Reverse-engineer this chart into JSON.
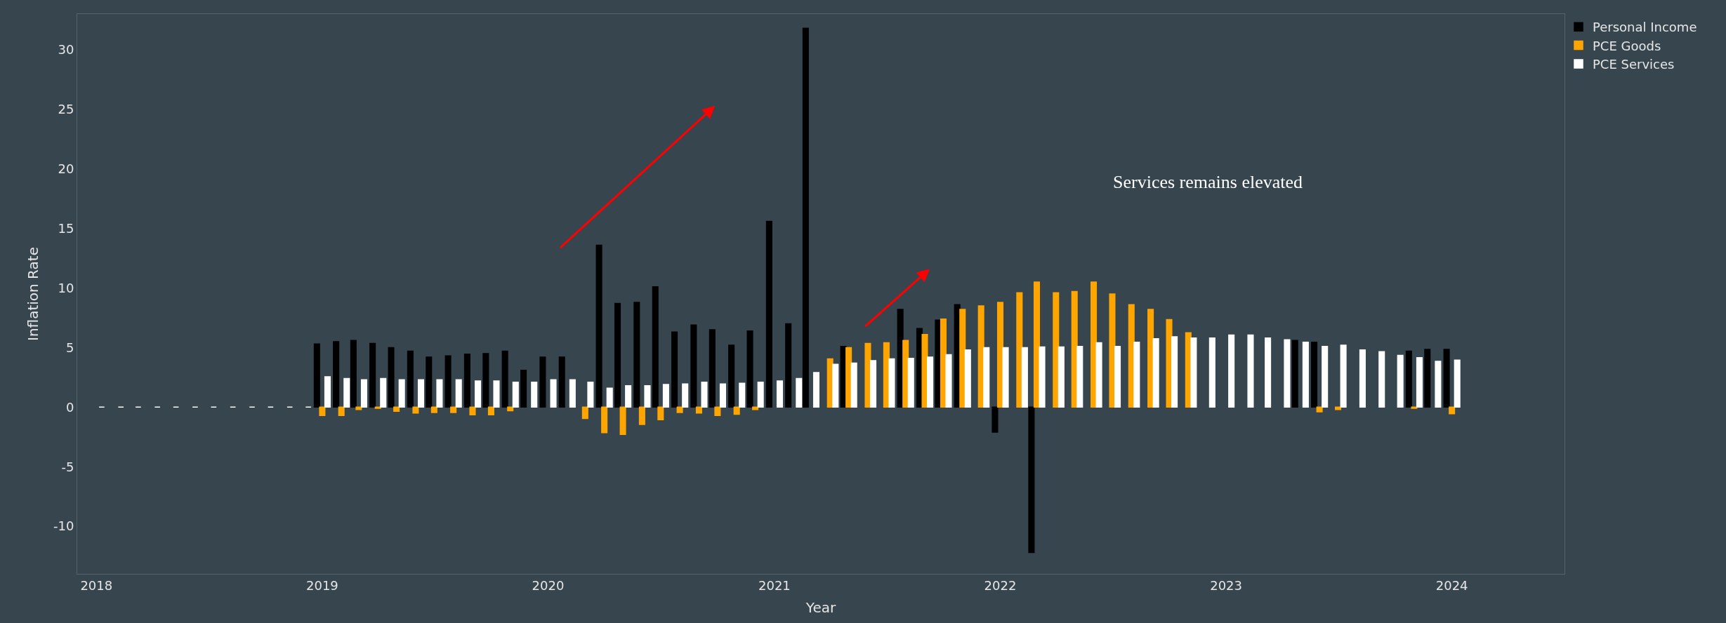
{
  "chart_data": {
    "type": "bar",
    "xlabel": "Year",
    "ylabel": "Inflation Rate",
    "x": [
      "2018-01",
      "2018-02",
      "2018-03",
      "2018-04",
      "2018-05",
      "2018-06",
      "2018-07",
      "2018-08",
      "2018-09",
      "2018-10",
      "2018-11",
      "2018-12",
      "2019-01",
      "2019-02",
      "2019-03",
      "2019-04",
      "2019-05",
      "2019-06",
      "2019-07",
      "2019-08",
      "2019-09",
      "2019-10",
      "2019-11",
      "2019-12",
      "2020-01",
      "2020-02",
      "2020-03",
      "2020-04",
      "2020-05",
      "2020-06",
      "2020-07",
      "2020-08",
      "2020-09",
      "2020-10",
      "2020-11",
      "2020-12",
      "2021-01",
      "2021-02",
      "2021-03",
      "2021-04",
      "2021-05",
      "2021-06",
      "2021-07",
      "2021-08",
      "2021-09",
      "2021-10",
      "2021-11",
      "2021-12",
      "2022-01",
      "2022-02",
      "2022-03",
      "2022-04",
      "2022-05",
      "2022-06",
      "2022-07",
      "2022-08",
      "2022-09",
      "2022-10",
      "2022-11",
      "2022-12",
      "2023-01",
      "2023-02",
      "2023-03",
      "2023-04",
      "2023-05",
      "2023-06",
      "2023-07",
      "2023-08",
      "2023-09",
      "2023-10",
      "2023-11",
      "2023-12",
      "2024-01"
    ],
    "series": [
      {
        "name": "Personal Income",
        "color": "#000000",
        "values": [
          null,
          null,
          null,
          null,
          null,
          null,
          null,
          null,
          null,
          null,
          null,
          null,
          5.3,
          5.5,
          5.6,
          5.35,
          5.0,
          4.7,
          4.2,
          4.3,
          4.45,
          4.5,
          4.7,
          3.1,
          4.2,
          4.2,
          null,
          13.6,
          8.7,
          8.8,
          10.1,
          6.3,
          6.9,
          6.5,
          5.2,
          6.4,
          15.6,
          7.0,
          31.8,
          null,
          5.1,
          null,
          null,
          8.2,
          6.6,
          7.3,
          8.6,
          null,
          -2.1,
          null,
          -12.2,
          null,
          null,
          null,
          null,
          null,
          null,
          null,
          null,
          null,
          null,
          null,
          null,
          null,
          5.6,
          5.45,
          null,
          null,
          null,
          null,
          4.7,
          4.85,
          4.85
        ]
      },
      {
        "name": "PCE Goods",
        "color": "#ffa500",
        "values": [
          null,
          null,
          null,
          null,
          null,
          null,
          null,
          null,
          null,
          null,
          null,
          null,
          -0.7,
          -0.7,
          -0.2,
          -0.1,
          -0.35,
          -0.5,
          -0.45,
          -0.45,
          -0.65,
          -0.65,
          -0.3,
          null,
          null,
          null,
          -0.95,
          -2.15,
          -2.3,
          -1.45,
          -1.05,
          -0.45,
          -0.5,
          -0.7,
          -0.6,
          -0.2,
          null,
          null,
          null,
          4.05,
          5.0,
          5.35,
          5.4,
          5.6,
          6.1,
          7.4,
          8.2,
          8.5,
          8.8,
          9.6,
          10.5,
          9.6,
          9.7,
          10.5,
          9.5,
          8.6,
          8.2,
          7.35,
          6.25,
          null,
          null,
          null,
          null,
          null,
          null,
          -0.4,
          -0.2,
          null,
          null,
          null,
          -0.1,
          null,
          -0.55
        ]
      },
      {
        "name": "PCE Services",
        "color": "#ffffff",
        "values": [
          0,
          0,
          0,
          0,
          0,
          0,
          0,
          0,
          0,
          0,
          0,
          0,
          2.55,
          2.4,
          2.3,
          2.4,
          2.3,
          2.3,
          2.3,
          2.3,
          2.2,
          2.2,
          2.1,
          2.1,
          2.3,
          2.3,
          2.1,
          1.6,
          1.8,
          1.8,
          1.9,
          1.95,
          2.1,
          1.95,
          2.0,
          2.1,
          2.2,
          2.4,
          2.9,
          3.6,
          3.7,
          3.9,
          4.05,
          4.1,
          4.2,
          4.4,
          4.8,
          5.0,
          5.0,
          5.0,
          5.05,
          5.05,
          5.1,
          5.4,
          5.1,
          5.45,
          5.75,
          5.9,
          5.8,
          5.8,
          6.05,
          6.05,
          5.8,
          5.65,
          5.45,
          5.1,
          5.2,
          4.8,
          4.65,
          4.35,
          4.15,
          3.85,
          3.95
        ]
      }
    ],
    "xlim": [
      "2017-12-01",
      "2024-07-01"
    ],
    "xticks": [
      {
        "value": "2018-01-01",
        "label": "2018"
      },
      {
        "value": "2019-01-01",
        "label": "2019"
      },
      {
        "value": "2020-01-01",
        "label": "2020"
      },
      {
        "value": "2021-01-01",
        "label": "2021"
      },
      {
        "value": "2022-01-01",
        "label": "2022"
      },
      {
        "value": "2023-01-01",
        "label": "2023"
      },
      {
        "value": "2024-01-01",
        "label": "2024"
      }
    ],
    "ylim": [
      -14,
      33
    ],
    "yticks": [
      -10,
      -5,
      0,
      5,
      10,
      15,
      20,
      25,
      30
    ],
    "grid": false,
    "legend": "top right",
    "annotations": [
      "Services remains elevated"
    ]
  }
}
